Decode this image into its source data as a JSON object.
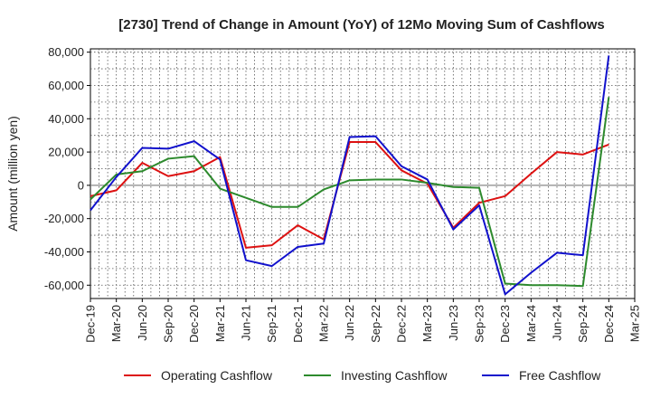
{
  "chart_data": {
    "type": "line",
    "title": "[2730]  Trend of Change in Amount (YoY) of 12Mo Moving Sum of Cashflows",
    "xlabel": "",
    "ylabel": "Amount (million yen)",
    "ylim": [
      -68000,
      82000
    ],
    "yticks": [
      80000,
      60000,
      40000,
      20000,
      0,
      -20000,
      -40000,
      -60000
    ],
    "ytick_labels": [
      "80,000",
      "60,000",
      "40,000",
      "20,000",
      "0",
      "-20,000",
      "-40,000",
      "-60,000"
    ],
    "categories": [
      "Dec-19",
      "Mar-20",
      "Jun-20",
      "Sep-20",
      "Dec-20",
      "Mar-21",
      "Jun-21",
      "Sep-21",
      "Dec-21",
      "Mar-22",
      "Jun-22",
      "Sep-22",
      "Dec-22",
      "Mar-23",
      "Jun-23",
      "Sep-23",
      "Dec-23",
      "Mar-24",
      "Jun-24",
      "Sep-24",
      "Dec-24",
      "Mar-25"
    ],
    "grid": true,
    "legend_position": "bottom",
    "series": [
      {
        "name": "Operating Cashflow",
        "color": "#dd1111",
        "values": [
          -6500,
          -3000,
          13500,
          5500,
          8500,
          17000,
          -37500,
          -36000,
          -24000,
          -32500,
          26000,
          26000,
          9000,
          1000,
          -25500,
          -10500,
          -6500,
          7000,
          20000,
          18500,
          24500,
          null
        ]
      },
      {
        "name": "Investing Cashflow",
        "color": "#2d8a2d",
        "values": [
          -8500,
          6500,
          8500,
          16000,
          17500,
          -2000,
          -7500,
          -13000,
          -13000,
          -2500,
          3000,
          3500,
          3500,
          1500,
          -1000,
          -1500,
          -59000,
          -60000,
          -60000,
          -60500,
          53000,
          null
        ]
      },
      {
        "name": "Free Cashflow",
        "color": "#1111cc",
        "values": [
          -15000,
          5000,
          22500,
          22000,
          26500,
          15500,
          -45000,
          -48500,
          -37000,
          -35000,
          29000,
          29500,
          11500,
          3500,
          -26500,
          -12000,
          -65500,
          -52500,
          -40500,
          -42000,
          78000,
          null
        ]
      }
    ]
  }
}
